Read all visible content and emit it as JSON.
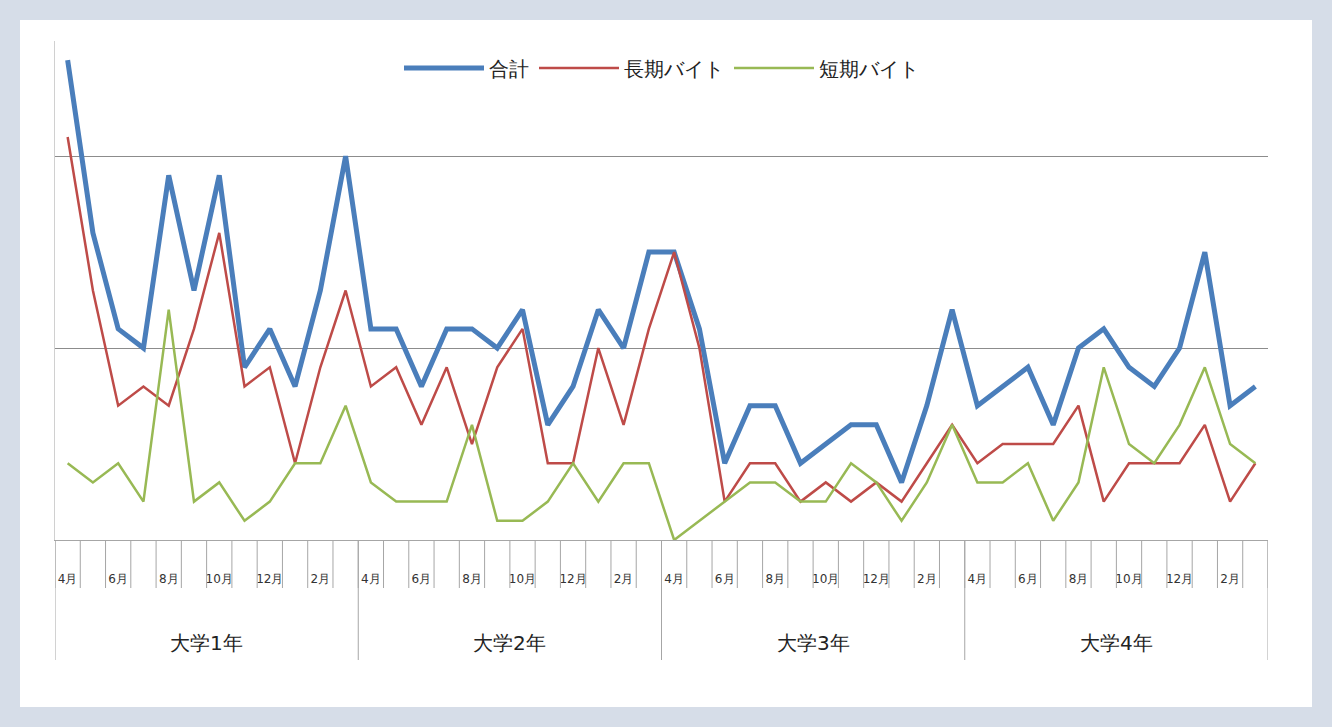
{
  "chart_data": {
    "type": "line",
    "categories": [
      "4月",
      null,
      "6月",
      null,
      "8月",
      null,
      "10月",
      null,
      "12月",
      null,
      "2月",
      null,
      "4月",
      null,
      "6月",
      null,
      "8月",
      null,
      "10月",
      null,
      "12月",
      null,
      "2月",
      null,
      "4月",
      null,
      "6月",
      null,
      "8月",
      null,
      "10月",
      null,
      "12月",
      null,
      "2月",
      null,
      "4月",
      null,
      "6月",
      null,
      "8月",
      null,
      "10月",
      null,
      "12月",
      null,
      "2月",
      null
    ],
    "groups": [
      "大学1年",
      "大学2年",
      "大学3年",
      "大学4年"
    ],
    "series": [
      {
        "name": "合計",
        "color": "#4a7ebb",
        "values": [
          25,
          16,
          11,
          10,
          19,
          13,
          19,
          9,
          11,
          8,
          13,
          20,
          11,
          11,
          8,
          11,
          11,
          10,
          12,
          6,
          8,
          12,
          10,
          15,
          15,
          11,
          4,
          7,
          7,
          4,
          5,
          6,
          6,
          3,
          7,
          12,
          7,
          8,
          9,
          6,
          10,
          11,
          9,
          8,
          10,
          15,
          7,
          8
        ]
      },
      {
        "name": "長期バイト",
        "color": "#be4b48",
        "values": [
          21,
          13,
          7,
          8,
          7,
          11,
          16,
          8,
          9,
          4,
          9,
          13,
          8,
          9,
          6,
          9,
          5,
          9,
          11,
          4,
          4,
          10,
          6,
          11,
          15,
          10,
          2,
          4,
          4,
          2,
          3,
          2,
          3,
          2,
          4,
          6,
          4,
          5,
          5,
          5,
          7,
          2,
          4,
          4,
          4,
          6,
          2,
          4
        ]
      },
      {
        "name": "短期バイト",
        "color": "#98b954",
        "values": [
          4,
          3,
          4,
          2,
          12,
          2,
          3,
          1,
          2,
          4,
          4,
          7,
          3,
          2,
          2,
          2,
          6,
          1,
          1,
          2,
          4,
          2,
          4,
          4,
          0,
          1,
          2,
          3,
          3,
          2,
          2,
          4,
          3,
          1,
          3,
          6,
          3,
          3,
          4,
          1,
          3,
          9,
          5,
          4,
          6,
          9,
          5,
          4
        ]
      }
    ],
    "ylim": [
      0,
      26
    ],
    "yticks": [
      10,
      20
    ],
    "grid": true,
    "legend": "top",
    "tick_labels": "x"
  }
}
